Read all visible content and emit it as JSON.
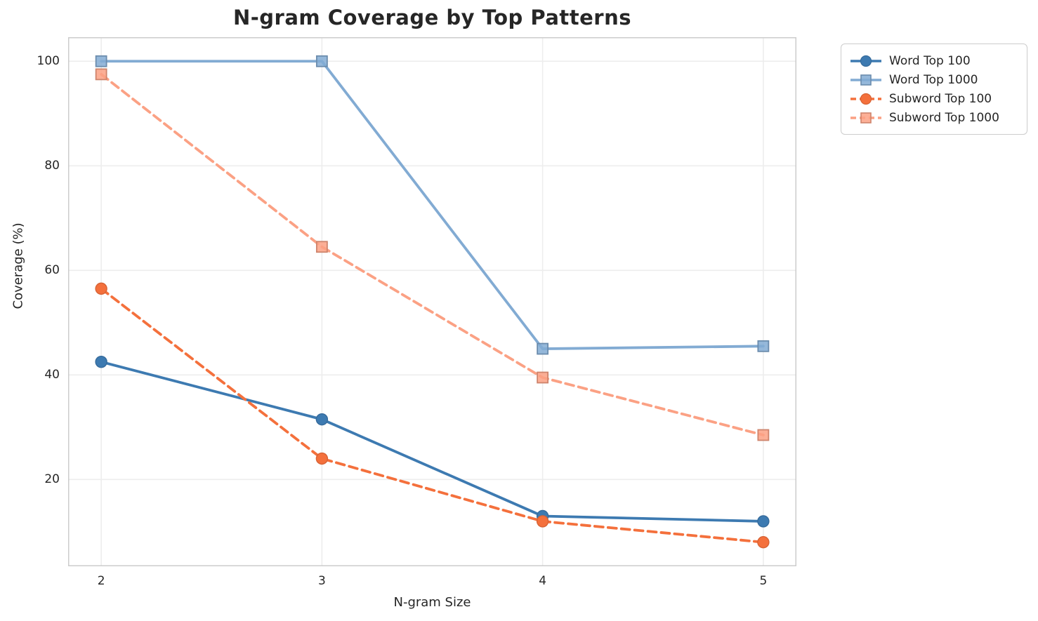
{
  "figure": {
    "background": "#ffffff",
    "text_color": "#262626",
    "grid_color": "#ededed",
    "spine_color": "#cccccc"
  },
  "chart_data": {
    "type": "line",
    "title": "N-gram Coverage by Top Patterns",
    "xlabel": "N-gram Size",
    "ylabel": "Coverage (%)",
    "x": [
      2,
      3,
      4,
      5
    ],
    "xticks": [
      "2",
      "3",
      "4",
      "5"
    ],
    "yticks": [
      20,
      40,
      60,
      80,
      100
    ],
    "xlim": [
      1.85,
      5.15
    ],
    "ylim": [
      3.4,
      104.6
    ],
    "grid": true,
    "legend_position": "outside-right-top",
    "series": [
      {
        "name": "Word Top 100",
        "values": [
          42.5,
          31.5,
          13.0,
          12.0
        ],
        "color": "#3d7ab1",
        "line_style": "solid",
        "marker": "circle"
      },
      {
        "name": "Word Top 1000",
        "values": [
          100.0,
          100.0,
          45.0,
          45.5
        ],
        "color": "#82abd3",
        "line_style": "solid",
        "marker": "square"
      },
      {
        "name": "Subword Top 100",
        "values": [
          56.5,
          24.0,
          12.0,
          8.0
        ],
        "color": "#f4703c",
        "line_style": "dashed",
        "marker": "circle"
      },
      {
        "name": "Subword Top 1000",
        "values": [
          97.5,
          64.5,
          39.5,
          28.5
        ],
        "color": "#fba184",
        "line_style": "dashed",
        "marker": "square"
      }
    ]
  }
}
